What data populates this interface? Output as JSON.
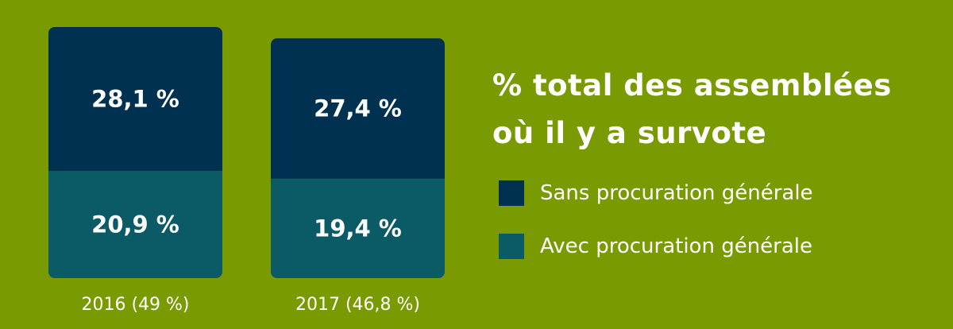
{
  "chart_data": {
    "type": "bar",
    "stacked": true,
    "title": "% total des assemblées où il y a survote",
    "title_lines": [
      "% total des assemblées",
      "où il y a survote"
    ],
    "categories": [
      "2016 (49 %)",
      "2017 (46,8 %)"
    ],
    "series": [
      {
        "name": "Sans procuration générale",
        "values": [
          28.1,
          27.4
        ],
        "labels": [
          "28,1 %",
          "27,4 %"
        ],
        "color": "#003151"
      },
      {
        "name": "Avec procuration générale",
        "values": [
          20.9,
          19.4
        ],
        "labels": [
          "20,9 %",
          "19,4 %"
        ],
        "color": "#0b5b66"
      }
    ],
    "totals": [
      49,
      46.8
    ],
    "legend_position": "right",
    "grid": false,
    "axes_visible": false
  },
  "colors": {
    "background": "#7a9a01",
    "text": "#ffffff"
  }
}
